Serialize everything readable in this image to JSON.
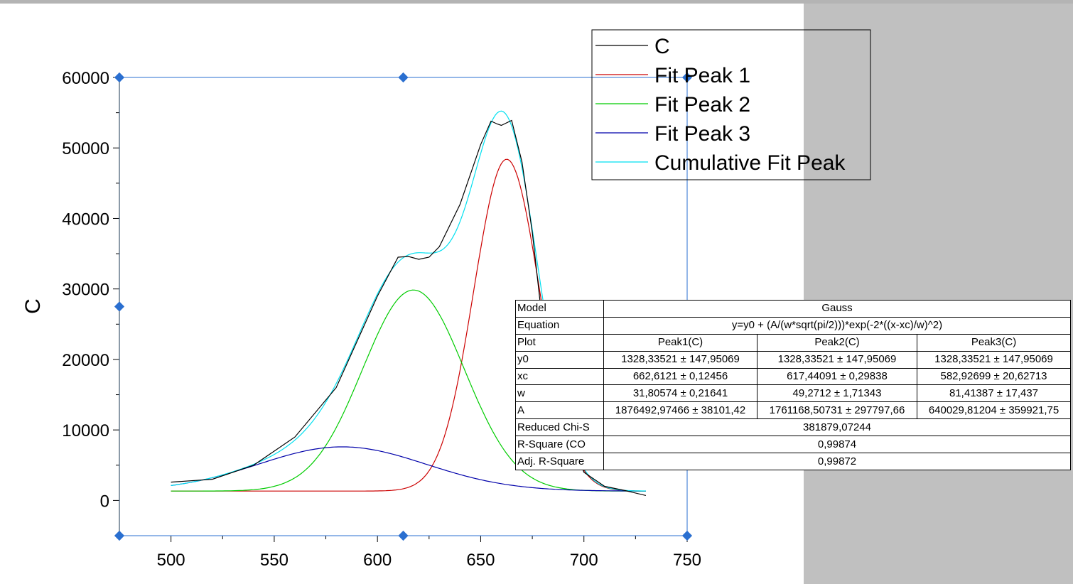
{
  "chart_data": {
    "type": "line",
    "title": "",
    "xlabel": "",
    "ylabel": "C",
    "xlim": [
      475,
      750
    ],
    "ylim": [
      -5000,
      60000
    ],
    "x_ticks": [
      500,
      550,
      600,
      650,
      700,
      750
    ],
    "y_ticks": [
      0,
      10000,
      20000,
      30000,
      40000,
      50000,
      60000
    ],
    "grid": false,
    "legend_position": "top-right",
    "series": [
      {
        "name": "C",
        "color": "#000000",
        "x": [
          500,
          520,
          540,
          560,
          580,
          600,
          610,
          615,
          620,
          625,
          630,
          640,
          650,
          655,
          658,
          660,
          665,
          670,
          675,
          680,
          690,
          700,
          710,
          720,
          730
        ],
        "y": [
          2600,
          3000,
          5000,
          9000,
          16000,
          29000,
          34500,
          34600,
          34200,
          34500,
          36000,
          42000,
          50500,
          53800,
          53400,
          53200,
          53900,
          48000,
          38000,
          25000,
          12000,
          4000,
          2000,
          1400,
          700
        ]
      },
      {
        "name": "Fit Peak 1",
        "color": "#cc0000",
        "x": [],
        "y": []
      },
      {
        "name": "Fit Peak 2",
        "color": "#00cc00",
        "x": [],
        "y": []
      },
      {
        "name": "Fit Peak 3",
        "color": "#0000aa",
        "x": [],
        "y": []
      },
      {
        "name": "Cumulative Fit Peak",
        "color": "#00e0f0",
        "x": [],
        "y": []
      }
    ],
    "model": {
      "y0": 1328.33521,
      "peaks": [
        {
          "xc": 662.6121,
          "w": 31.80574,
          "A": 1876492.97466
        },
        {
          "xc": 617.44091,
          "w": 49.2712,
          "A": 1761168.50731
        },
        {
          "xc": 582.92699,
          "w": 81.41387,
          "A": 640029.81204
        }
      ],
      "x_range": [
        500,
        730
      ]
    }
  },
  "results_table": {
    "rows": [
      {
        "label": "Model",
        "values": [
          "Gauss"
        ]
      },
      {
        "label": "Equation",
        "values": [
          "y=y0 + (A/(w*sqrt(pi/2)))*exp(-2*((x-xc)/w)^2)"
        ]
      },
      {
        "label": "Plot",
        "values": [
          "Peak1(C)",
          "Peak2(C)",
          "Peak3(C)"
        ]
      },
      {
        "label": "y0",
        "values": [
          "1328,33521 ± 147,95069",
          "1328,33521 ± 147,95069",
          "1328,33521 ± 147,95069"
        ]
      },
      {
        "label": "xc",
        "values": [
          "662,6121 ± 0,12456",
          "617,44091 ± 0,29838",
          "582,92699 ± 20,62713"
        ]
      },
      {
        "label": "w",
        "values": [
          "31,80574 ± 0,21641",
          "49,2712 ± 1,71343",
          "81,41387 ± 17,437"
        ]
      },
      {
        "label": "A",
        "values": [
          "1876492,97466 ± 38101,42",
          "1761168,50731 ± 297797,66",
          "640029,81204 ± 359921,75"
        ]
      },
      {
        "label": "Reduced Chi-S",
        "values": [
          "381879,07244"
        ]
      },
      {
        "label": "R-Square (CO",
        "values": [
          "0,99874"
        ]
      },
      {
        "label": "Adj. R-Square",
        "values": [
          "0,99872"
        ]
      }
    ]
  }
}
